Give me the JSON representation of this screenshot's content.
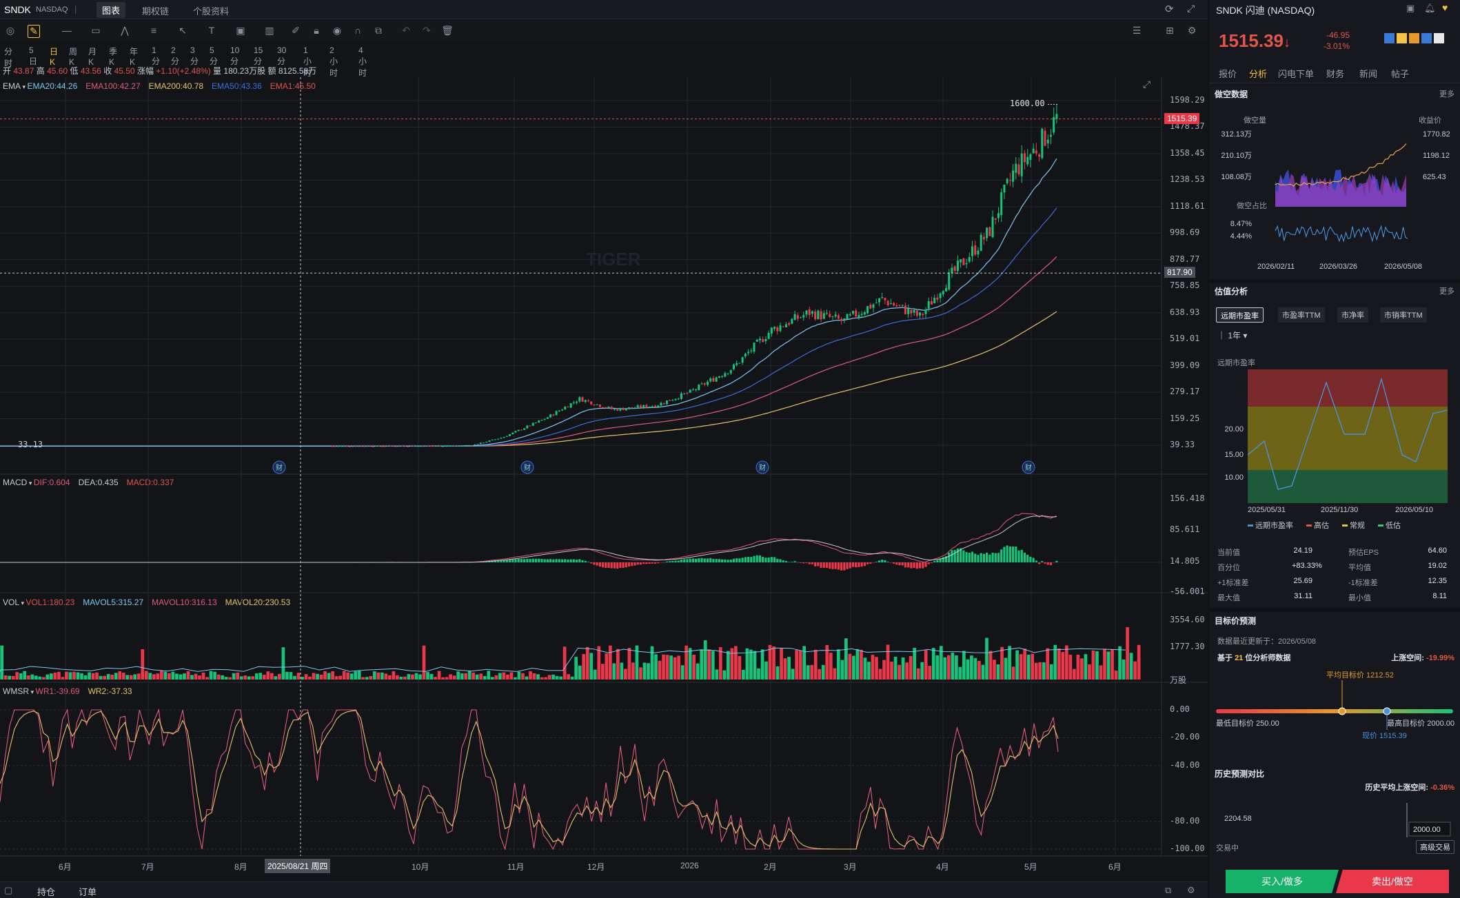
{
  "header": {
    "ticker": "SNDK",
    "exchange": "NASDAQ",
    "tabs": [
      "图表",
      "期权链",
      "个股资料"
    ],
    "active_tab": "图表"
  },
  "periods": [
    "分时",
    "5日",
    "日K",
    "周K",
    "月K",
    "季K",
    "年K",
    "1分",
    "2分",
    "3分",
    "5分",
    "10分",
    "15分",
    "30分",
    "1小时",
    "2小时",
    "4小时"
  ],
  "active_period": "日K",
  "ohlc": {
    "open_label": "开",
    "open": "43.87",
    "high_label": "高",
    "high": "45.60",
    "low_label": "低",
    "low": "43.56",
    "close_label": "收",
    "close": "45.50",
    "chg_label": "涨幅",
    "chg": "+1.10(+2.48%)",
    "vol_label": "量",
    "vol": "180.23万股",
    "amt_label": "额",
    "amt": "8125.58万"
  },
  "ema": {
    "name": "EMA",
    "items": [
      {
        "text": "EMA20:44.26",
        "color": "#7ec8f0"
      },
      {
        "text": "EMA100:42.27",
        "color": "#e05c7a"
      },
      {
        "text": "EMA200:40.78",
        "color": "#e6c36a"
      },
      {
        "text": "EMA50:43.36",
        "color": "#3a6fd8"
      },
      {
        "text": "EMA1:45.50",
        "color": "#e0564a"
      }
    ]
  },
  "price_axis": [
    "1598.29",
    "1478.37",
    "1358.45",
    "1238.53",
    "1118.61",
    "998.69",
    "878.77",
    "758.85",
    "638.93",
    "519.01",
    "399.09",
    "279.17",
    "159.25",
    "39.33"
  ],
  "price_current": "1515.39",
  "price_cross": "817.90",
  "price_high_mark": "1600.00",
  "price_low_mark": "33.13",
  "macd": {
    "name": "MACD",
    "items": [
      {
        "text": "DIF:0.604",
        "color": "#e05c7a"
      },
      {
        "text": "DEA:0.435",
        "color": "#c8ccd2"
      },
      {
        "text": "MACD:0.337",
        "color": "#e0564a"
      }
    ],
    "axis": [
      "156.418",
      "85.611",
      "14.805",
      "-56.001"
    ]
  },
  "vol": {
    "name": "VOL",
    "items": [
      {
        "text": "VOL1:180.23",
        "color": "#e0564a"
      },
      {
        "text": "MAVOL5:315.27",
        "color": "#7ec8f0"
      },
      {
        "text": "MAVOL10:316.13",
        "color": "#e05c7a"
      },
      {
        "text": "MAVOL20:230.53",
        "color": "#e6c36a"
      }
    ],
    "axis": [
      "3554.60",
      "1777.30"
    ],
    "unit": "万股"
  },
  "wmsr": {
    "name": "WMSR",
    "items": [
      {
        "text": "WR1:-39.69",
        "color": "#e05c7a"
      },
      {
        "text": "WR2:-37.33",
        "color": "#e6c36a"
      }
    ],
    "axis": [
      "0.00",
      "-20.00",
      "-40.00",
      "-80.00",
      "-100.00"
    ]
  },
  "time_axis": [
    "6月",
    "7月",
    "8月",
    "10月",
    "11月",
    "12月",
    "2026",
    "2月",
    "3月",
    "4月",
    "5月",
    "6月"
  ],
  "crosshair_date": "2025/08/21 周四",
  "event_marker": "财",
  "watermark": "TIGER",
  "bottom_tabs": [
    "持仓",
    "订单"
  ],
  "right": {
    "title": "SNDK 闪迪 (NASDAQ)",
    "price": "1515.39",
    "arrow": "↓",
    "chg": "-46.95",
    "chg_pct": "-3.01%",
    "tabs": [
      "报价",
      "分析",
      "闪电下单",
      "财务",
      "新闻",
      "帖子"
    ],
    "active_tab": "分析",
    "short": {
      "title": "做空数据",
      "more": "更多",
      "left_label": "做空量",
      "right_label": "收益价",
      "left_axis": [
        "312.13万",
        "210.10万",
        "108.08万"
      ],
      "right_axis": [
        "1770.82",
        "1198.12",
        "625.43"
      ],
      "ratio_label": "做空占比",
      "ratio_axis": [
        "8.47%",
        "4.44%"
      ],
      "dates": [
        "2026/02/11",
        "2026/03/26",
        "2026/05/08"
      ]
    },
    "valuation": {
      "title": "估值分析",
      "more": "更多",
      "buttons": [
        "远期市盈率",
        "市盈率TTM",
        "市净率",
        "市销率TTM"
      ],
      "active": "远期市盈率",
      "range": "1年",
      "chart_label": "远期市盈率",
      "y_axis": [
        "20.00",
        "15.00",
        "10.00"
      ],
      "x_axis": [
        "2025/05/31",
        "2025/11/30",
        "2026/05/10"
      ],
      "legend": [
        {
          "text": "远期市盈率",
          "color": "#4a90d9"
        },
        {
          "text": "高估",
          "color": "#e0564a"
        },
        {
          "text": "常规",
          "color": "#e6c343"
        },
        {
          "text": "低估",
          "color": "#2ecc71"
        }
      ],
      "stats": [
        [
          "当前值",
          "24.19",
          "预估EPS",
          "64.60"
        ],
        [
          "百分位",
          "+83.33%",
          "平均值",
          "19.02"
        ],
        [
          "+1标准差",
          "25.69",
          "-1标准差",
          "12.35"
        ],
        [
          "最大值",
          "31.11",
          "最小值",
          "8.11"
        ]
      ]
    },
    "target": {
      "title": "目标价预测",
      "updated": "数据最近更新于：2026/05/08",
      "based_pre": "基于",
      "count": "21",
      "based_post": "位分析师数据",
      "upside_label": "上涨空间:",
      "upside": "-19.99%",
      "avg": "平均目标价 1212.52",
      "low": "最低目标价 250.00",
      "high": "最高目标价 2000.00",
      "now": "现价 1515.39"
    },
    "history": {
      "title": "历史预测对比",
      "avg_label": "历史平均上涨空间:",
      "avg": "-0.36%",
      "val1": "2204.58",
      "val2": "2000.00"
    },
    "trading": "交易中",
    "adv": "高级交易",
    "buy": "买入/做多",
    "sell": "卖出/做空"
  },
  "chart_data": {
    "type": "candlestick",
    "series": [
      {
        "name": "SNDK",
        "values_note": "",
        "first": "33.13",
        "last": "1515.39",
        "high": "1600.00"
      }
    ]
  }
}
